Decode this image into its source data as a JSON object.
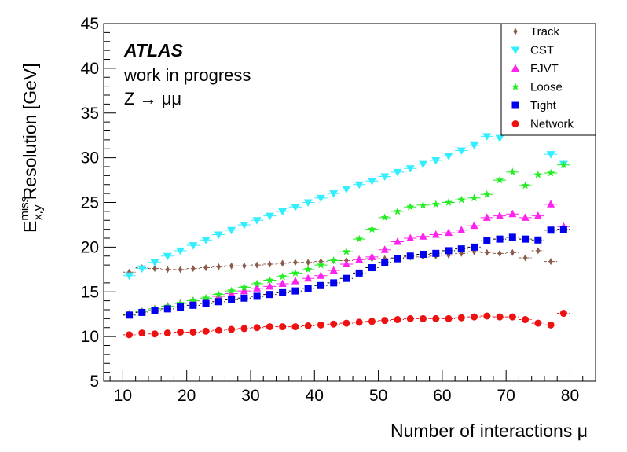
{
  "chart_data": {
    "type": "scatter",
    "title": "",
    "xlabel": "Number of interactions μ",
    "ylabel_main": "E",
    "ylabel_sup": "miss",
    "ylabel_sub": "x,y",
    "ylabel_rest": " Resolution [GeV]",
    "xlim": [
      7,
      84
    ],
    "ylim": [
      5,
      45
    ],
    "xticks": [
      10,
      20,
      30,
      40,
      50,
      60,
      70,
      80
    ],
    "yticks": [
      5,
      10,
      15,
      20,
      25,
      30,
      35,
      40,
      45
    ],
    "annotations": {
      "experiment": "ATLAS",
      "status": "work in progress",
      "process": "Z → μμ"
    },
    "legend_position": "top-right",
    "series": [
      {
        "name": "Track",
        "marker": "diamond",
        "color": "#8b5a4a",
        "errcolor": "#8b5a4a",
        "dashed": true,
        "x": [
          11,
          13,
          15,
          17,
          19,
          21,
          23,
          25,
          27,
          29,
          31,
          33,
          35,
          37,
          39,
          41,
          43,
          45,
          47,
          49,
          51,
          53,
          55,
          57,
          59,
          61,
          63,
          65,
          67,
          69,
          71,
          73,
          75,
          77
        ],
        "y": [
          17.2,
          17.7,
          17.6,
          17.5,
          17.5,
          17.6,
          17.7,
          17.8,
          17.9,
          17.9,
          18.0,
          18.1,
          18.2,
          18.3,
          18.3,
          18.4,
          18.5,
          18.5,
          18.6,
          18.7,
          18.7,
          18.8,
          18.9,
          18.9,
          19.0,
          19.1,
          19.3,
          19.5,
          19.4,
          19.3,
          19.4,
          18.8,
          19.6,
          18.4
        ]
      },
      {
        "name": "CST",
        "marker": "triangle-down",
        "color": "#33eeff",
        "errcolor": "#33eeff",
        "dashed": false,
        "x": [
          11,
          13,
          15,
          17,
          19,
          21,
          23,
          25,
          27,
          29,
          31,
          33,
          35,
          37,
          39,
          41,
          43,
          45,
          47,
          49,
          51,
          53,
          55,
          57,
          59,
          61,
          63,
          65,
          67,
          69,
          71,
          73,
          75,
          77,
          79
        ],
        "y": [
          16.8,
          17.6,
          18.3,
          19.0,
          19.6,
          20.2,
          20.8,
          21.4,
          21.9,
          22.5,
          23.0,
          23.5,
          24.0,
          24.5,
          25.0,
          25.5,
          26.0,
          26.5,
          27.0,
          27.4,
          27.9,
          28.4,
          28.8,
          29.3,
          29.7,
          30.2,
          30.8,
          31.4,
          32.4,
          32.2,
          33.0,
          34.0,
          33.5,
          30.4,
          29.3
        ]
      },
      {
        "name": "FJVT",
        "marker": "triangle-up",
        "color": "#ff22ee",
        "errcolor": "#ff22ee",
        "dashed": false,
        "x": [
          11,
          13,
          15,
          17,
          19,
          21,
          23,
          25,
          27,
          29,
          31,
          33,
          35,
          37,
          39,
          41,
          43,
          45,
          47,
          49,
          51,
          53,
          55,
          57,
          59,
          61,
          63,
          65,
          67,
          69,
          71,
          73,
          75,
          77,
          79
        ],
        "y": [
          12.5,
          12.8,
          13.1,
          13.4,
          13.7,
          14.0,
          14.2,
          14.5,
          14.8,
          15.1,
          15.4,
          15.6,
          15.9,
          16.2,
          16.5,
          16.8,
          17.4,
          18.1,
          18.6,
          18.9,
          19.7,
          20.6,
          21.0,
          21.2,
          21.4,
          21.6,
          21.9,
          22.4,
          23.3,
          23.5,
          23.7,
          23.3,
          23.5,
          24.8,
          22.3
        ]
      },
      {
        "name": "Loose",
        "marker": "star",
        "color": "#22ee22",
        "errcolor": "#22ee22",
        "dashed": false,
        "x": [
          11,
          13,
          15,
          17,
          19,
          21,
          23,
          25,
          27,
          29,
          31,
          33,
          35,
          37,
          39,
          41,
          43,
          45,
          47,
          49,
          51,
          53,
          55,
          57,
          59,
          61,
          63,
          65,
          67,
          69,
          71,
          73,
          75,
          77,
          79
        ],
        "y": [
          12.5,
          12.8,
          13.1,
          13.4,
          13.7,
          14.0,
          14.3,
          14.7,
          15.1,
          15.5,
          15.9,
          16.3,
          16.7,
          17.1,
          17.5,
          18.0,
          18.5,
          19.5,
          20.9,
          22.0,
          23.3,
          24.0,
          24.5,
          24.7,
          24.8,
          25.0,
          25.3,
          25.5,
          25.9,
          27.5,
          28.4,
          26.9,
          28.1,
          28.3,
          29.2
        ]
      },
      {
        "name": "Tight",
        "marker": "square",
        "color": "#0000ee",
        "errcolor": "#000000",
        "dashed": true,
        "x": [
          11,
          13,
          15,
          17,
          19,
          21,
          23,
          25,
          27,
          29,
          31,
          33,
          35,
          37,
          39,
          41,
          43,
          45,
          47,
          49,
          51,
          53,
          55,
          57,
          59,
          61,
          63,
          65,
          67,
          69,
          71,
          73,
          75,
          77,
          79
        ],
        "y": [
          12.4,
          12.7,
          12.9,
          13.1,
          13.3,
          13.5,
          13.7,
          13.9,
          14.1,
          14.3,
          14.5,
          14.7,
          14.9,
          15.1,
          15.4,
          15.7,
          16.0,
          16.5,
          17.1,
          17.7,
          18.3,
          18.7,
          19.0,
          19.2,
          19.3,
          19.6,
          19.8,
          20.0,
          20.7,
          20.9,
          21.1,
          20.9,
          20.8,
          21.9,
          22.0
        ]
      },
      {
        "name": "Network",
        "marker": "circle",
        "color": "#ee1111",
        "errcolor": "#ee1111",
        "dashed": true,
        "x": [
          11,
          13,
          15,
          17,
          19,
          21,
          23,
          25,
          27,
          29,
          31,
          33,
          35,
          37,
          39,
          41,
          43,
          45,
          47,
          49,
          51,
          53,
          55,
          57,
          59,
          61,
          63,
          65,
          67,
          69,
          71,
          73,
          75,
          77,
          79
        ],
        "y": [
          10.2,
          10.4,
          10.3,
          10.4,
          10.5,
          10.5,
          10.6,
          10.7,
          10.8,
          10.9,
          11.0,
          11.1,
          11.1,
          11.1,
          11.2,
          11.3,
          11.4,
          11.5,
          11.6,
          11.7,
          11.8,
          11.9,
          12.0,
          12.0,
          12.0,
          12.0,
          12.1,
          12.2,
          12.3,
          12.2,
          12.2,
          11.9,
          11.5,
          11.3,
          12.6
        ]
      }
    ]
  }
}
